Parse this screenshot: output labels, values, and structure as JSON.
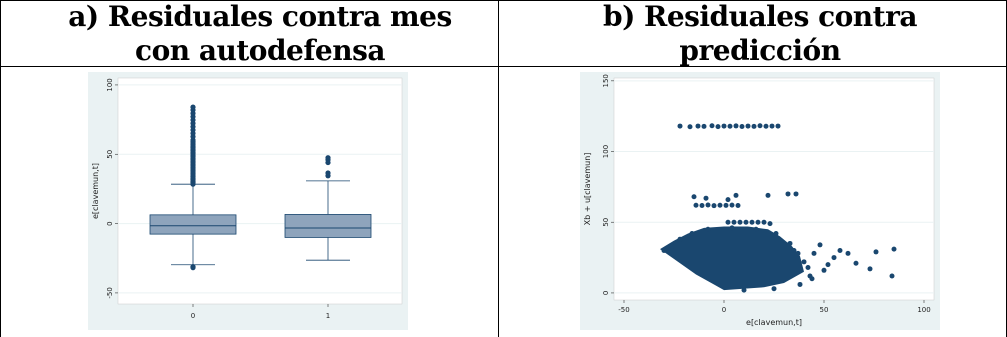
{
  "table": {
    "header_left": "a) Residuales contra mes con autodefensa",
    "header_right": "b) Residuales contra predicción"
  },
  "chart_data": [
    {
      "type": "box",
      "title": "",
      "ylabel": "e[clavemun,t]",
      "xlabel": "",
      "ylim": [
        -58,
        105
      ],
      "yticks": [
        "-50",
        "0",
        "50",
        "100"
      ],
      "ytick_values": [
        -50,
        0,
        50,
        100
      ],
      "categories": [
        "0",
        "1"
      ],
      "boxes": [
        {
          "category": "0",
          "q1": -7.6,
          "median": -1.6,
          "q3": 6.3,
          "whisker_low": -29.7,
          "whisker_high": 28.4,
          "outliers_high_range": [
            28.4,
            84
          ],
          "outliers_low": [
            -31,
            -31.8
          ]
        },
        {
          "category": "1",
          "q1": -10,
          "median": -3.2,
          "q3": 6.6,
          "whisker_low": -26.4,
          "whisker_high": 30.8,
          "outliers_high": [
            34.5,
            36.5,
            44,
            46,
            47.5
          ]
        }
      ],
      "colors": {
        "box": "#8ea4bc",
        "outline": "#1a476f",
        "plot_bg": "#eaf2f3",
        "grid": "#ffffff"
      }
    },
    {
      "type": "scatter",
      "title": "",
      "xlabel": "e[clavemun,t]",
      "ylabel": "Xb + u[clavemun]",
      "xlim": [
        -55,
        105
      ],
      "ylim": [
        -5,
        152
      ],
      "xticks": [
        "-50",
        "0",
        "50",
        "100"
      ],
      "xtick_values": [
        -50,
        0,
        50,
        100
      ],
      "yticks": [
        "0",
        "50",
        "100",
        "150"
      ],
      "ytick_values": [
        0,
        50,
        100,
        150
      ],
      "points": [
        [
          -22,
          118
        ],
        [
          -17,
          117.5
        ],
        [
          -13,
          118
        ],
        [
          -10,
          117.8
        ],
        [
          -6,
          118.2
        ],
        [
          -3,
          117.6
        ],
        [
          0,
          118
        ],
        [
          3,
          117.9
        ],
        [
          6,
          118.1
        ],
        [
          9,
          117.7
        ],
        [
          12,
          118
        ],
        [
          15,
          117.8
        ],
        [
          18,
          118.2
        ],
        [
          21,
          117.9
        ],
        [
          24,
          118
        ],
        [
          27,
          118
        ],
        [
          -15,
          68
        ],
        [
          -9,
          67
        ],
        [
          2,
          66
        ],
        [
          6,
          69
        ],
        [
          22,
          69
        ],
        [
          32,
          70
        ],
        [
          36,
          70
        ],
        [
          -14,
          62
        ],
        [
          -11,
          61.8
        ],
        [
          -8,
          62.2
        ],
        [
          -5,
          61.7
        ],
        [
          -2,
          62
        ],
        [
          1,
          61.9
        ],
        [
          4,
          62.1
        ],
        [
          7,
          61.8
        ],
        [
          2,
          50
        ],
        [
          5,
          50
        ],
        [
          8,
          50
        ],
        [
          11,
          50
        ],
        [
          14,
          50
        ],
        [
          17,
          50
        ],
        [
          20,
          50
        ],
        [
          23,
          49
        ],
        [
          58,
          30
        ],
        [
          66,
          21
        ],
        [
          73,
          17
        ],
        [
          76,
          29
        ],
        [
          84,
          12
        ],
        [
          85,
          31
        ],
        [
          50,
          16
        ],
        [
          43,
          12
        ],
        [
          55,
          25
        ],
        [
          62,
          28
        ],
        [
          48,
          34
        ],
        [
          52,
          20
        ],
        [
          40,
          22
        ],
        [
          45,
          28
        ],
        [
          35,
          30
        ]
      ],
      "colors": {
        "marker": "#1a476f",
        "plot_bg": "#eaf2f3",
        "grid": "#ffffff"
      }
    }
  ]
}
